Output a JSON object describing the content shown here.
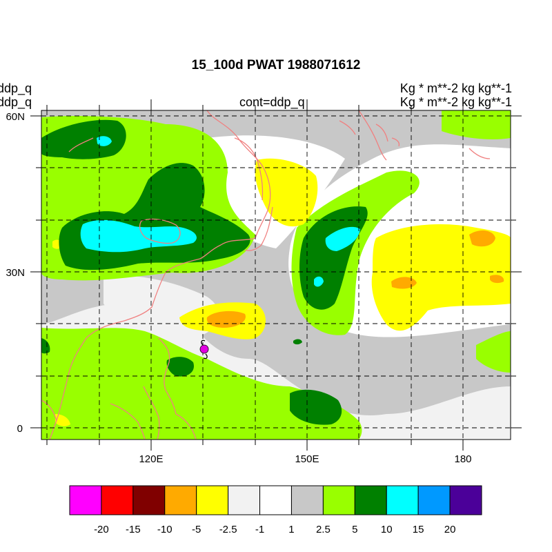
{
  "title": "15_100d PWAT  1988071612",
  "left_labels": [
    "ddp_q",
    "ddp_q"
  ],
  "right_labels": [
    "Kg  * m**-2 kg kg**-1",
    "Kg  * m**-2 kg kg**-1"
  ],
  "center_label": "cont=ddp_q",
  "lat_labels": [
    "60N",
    "30N",
    "0"
  ],
  "lon_labels": [
    "120E",
    "150E",
    "180"
  ],
  "colorbar": {
    "colors": [
      "#ff00ff",
      "#ff0000",
      "#800000",
      "#ffaa00",
      "#ffff00",
      "#f2f2f2",
      "#ffffff",
      "#c8c8c8",
      "#99ff00",
      "#008000",
      "#00ffff",
      "#0099ff",
      "#4b0099"
    ],
    "labels": [
      "-20",
      "-15",
      "-10",
      "-5",
      "-2.5",
      "-1",
      "1",
      "2.5",
      "5",
      "10",
      "15",
      "20"
    ]
  },
  "marker_color": "#e000e0"
}
